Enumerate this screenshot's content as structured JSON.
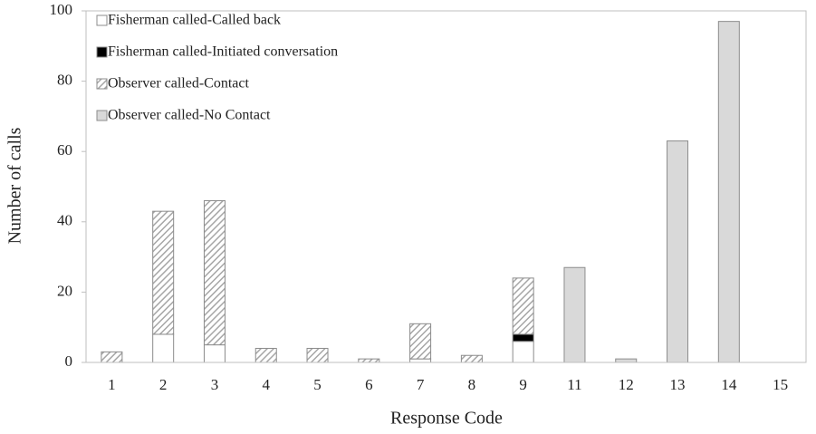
{
  "chart_data": {
    "type": "stacked_bar",
    "xlabel": "Response Code",
    "ylabel": "Number of calls",
    "categories": [
      "1",
      "2",
      "3",
      "4",
      "5",
      "6",
      "7",
      "8",
      "9",
      "11",
      "12",
      "13",
      "14",
      "15"
    ],
    "series": [
      {
        "name": "Fisherman called-Called back",
        "color": "#ffffff",
        "values": [
          0,
          8,
          5,
          0,
          0,
          0,
          1,
          0,
          6,
          0,
          0,
          0,
          0,
          0
        ]
      },
      {
        "name": "Fisherman called-Initiated conversation",
        "color": "#000000",
        "values": [
          0,
          0,
          0,
          0,
          0,
          0,
          0,
          0,
          2,
          0,
          0,
          0,
          0,
          0
        ]
      },
      {
        "name": "Observer called-Contact",
        "color": "#a6a6a6",
        "pattern": "diagonal",
        "values": [
          3,
          35,
          41,
          4,
          4,
          1,
          10,
          2,
          16,
          0,
          0,
          0,
          0,
          0
        ]
      },
      {
        "name": "Observer called-No Contact",
        "color": "#d9d9d9",
        "values": [
          0,
          0,
          0,
          0,
          0,
          0,
          0,
          0,
          0,
          27,
          1,
          63,
          97,
          0
        ]
      }
    ],
    "ylim": [
      0,
      100
    ],
    "yticks": [
      0,
      20,
      40,
      60,
      80,
      100
    ],
    "grid": false,
    "legend": "upper left"
  }
}
